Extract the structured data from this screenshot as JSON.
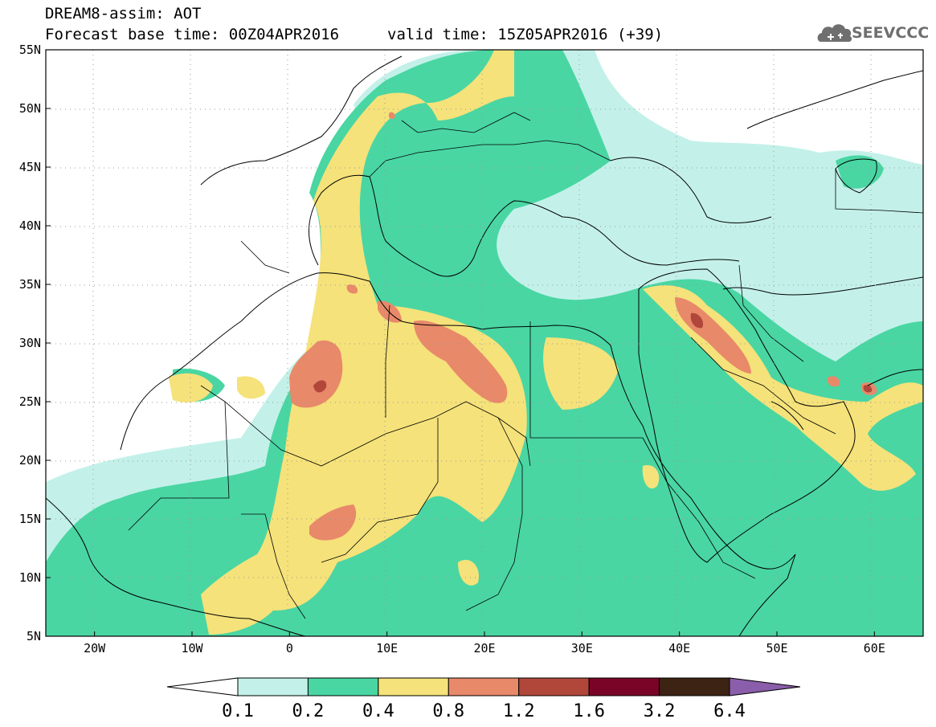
{
  "header": {
    "line1": "DREAM8-assim: AOT",
    "base_time": "Forecast base time: 00Z04APR2016",
    "valid_time": "valid time: 15Z05APR2016 (+39)"
  },
  "logo": {
    "text": "SEEVCCC",
    "icon": "cloud-icon"
  },
  "map": {
    "lon_ticks": [
      {
        "lon": -20,
        "label": "20W"
      },
      {
        "lon": -10,
        "label": "10W"
      },
      {
        "lon": 0,
        "label": "0"
      },
      {
        "lon": 10,
        "label": "10E"
      },
      {
        "lon": 20,
        "label": "20E"
      },
      {
        "lon": 30,
        "label": "30E"
      },
      {
        "lon": 40,
        "label": "40E"
      },
      {
        "lon": 50,
        "label": "50E"
      },
      {
        "lon": 60,
        "label": "60E"
      }
    ],
    "lat_ticks": [
      {
        "lat": 55,
        "label": "55N"
      },
      {
        "lat": 50,
        "label": "50N"
      },
      {
        "lat": 45,
        "label": "45N"
      },
      {
        "lat": 40,
        "label": "40N"
      },
      {
        "lat": 35,
        "label": "35N"
      },
      {
        "lat": 30,
        "label": "30N"
      },
      {
        "lat": 25,
        "label": "25N"
      },
      {
        "lat": 20,
        "label": "20N"
      },
      {
        "lat": 15,
        "label": "15N"
      },
      {
        "lat": 10,
        "label": "10N"
      },
      {
        "lat": 5,
        "label": "5N"
      }
    ],
    "lon_range": [
      -25,
      65
    ],
    "lat_range": [
      5,
      55
    ]
  },
  "colorbar": {
    "labels": [
      "0.1",
      "0.2",
      "0.4",
      "0.8",
      "1.2",
      "1.6",
      "3.2",
      "6.4"
    ],
    "colors": [
      "#ffffff",
      "#c3f1e9",
      "#49d6a3",
      "#f5e27a",
      "#e8896a",
      "#b0473a",
      "#7a0428",
      "#3d2314",
      "#8a5eaa"
    ]
  }
}
